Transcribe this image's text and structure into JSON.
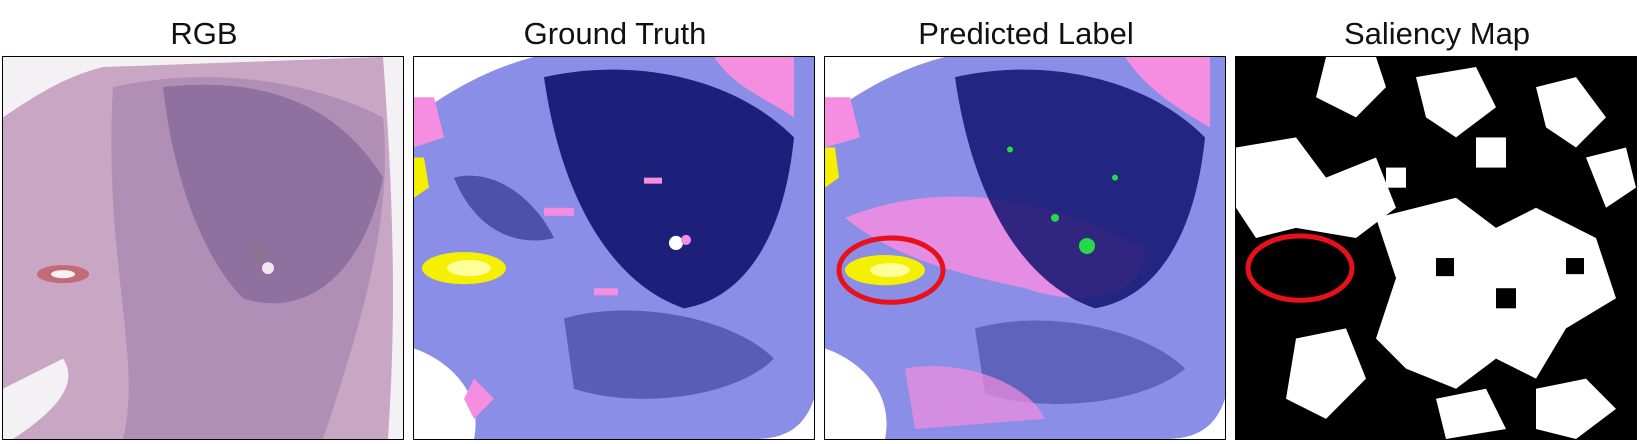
{
  "panels": [
    {
      "title": "RGB"
    },
    {
      "title": "Ground Truth"
    },
    {
      "title": "Predicted Label"
    },
    {
      "title": "Saliency Map"
    }
  ],
  "colors": {
    "rgb_background": "#f4f1f4",
    "rgb_tissue": "#c9a6c4",
    "rgb_dark_tissue": "#7a5c8e",
    "label_background": "#ffffff",
    "label_stroma": "#8a8ee6",
    "label_tumor": "#10146e",
    "label_pink": "#f58de0",
    "label_yellow": "#f5f000",
    "label_green": "#27d84b",
    "saliency_black": "#000000",
    "saliency_white": "#ffffff",
    "highlight_circle": "#e8111a"
  }
}
